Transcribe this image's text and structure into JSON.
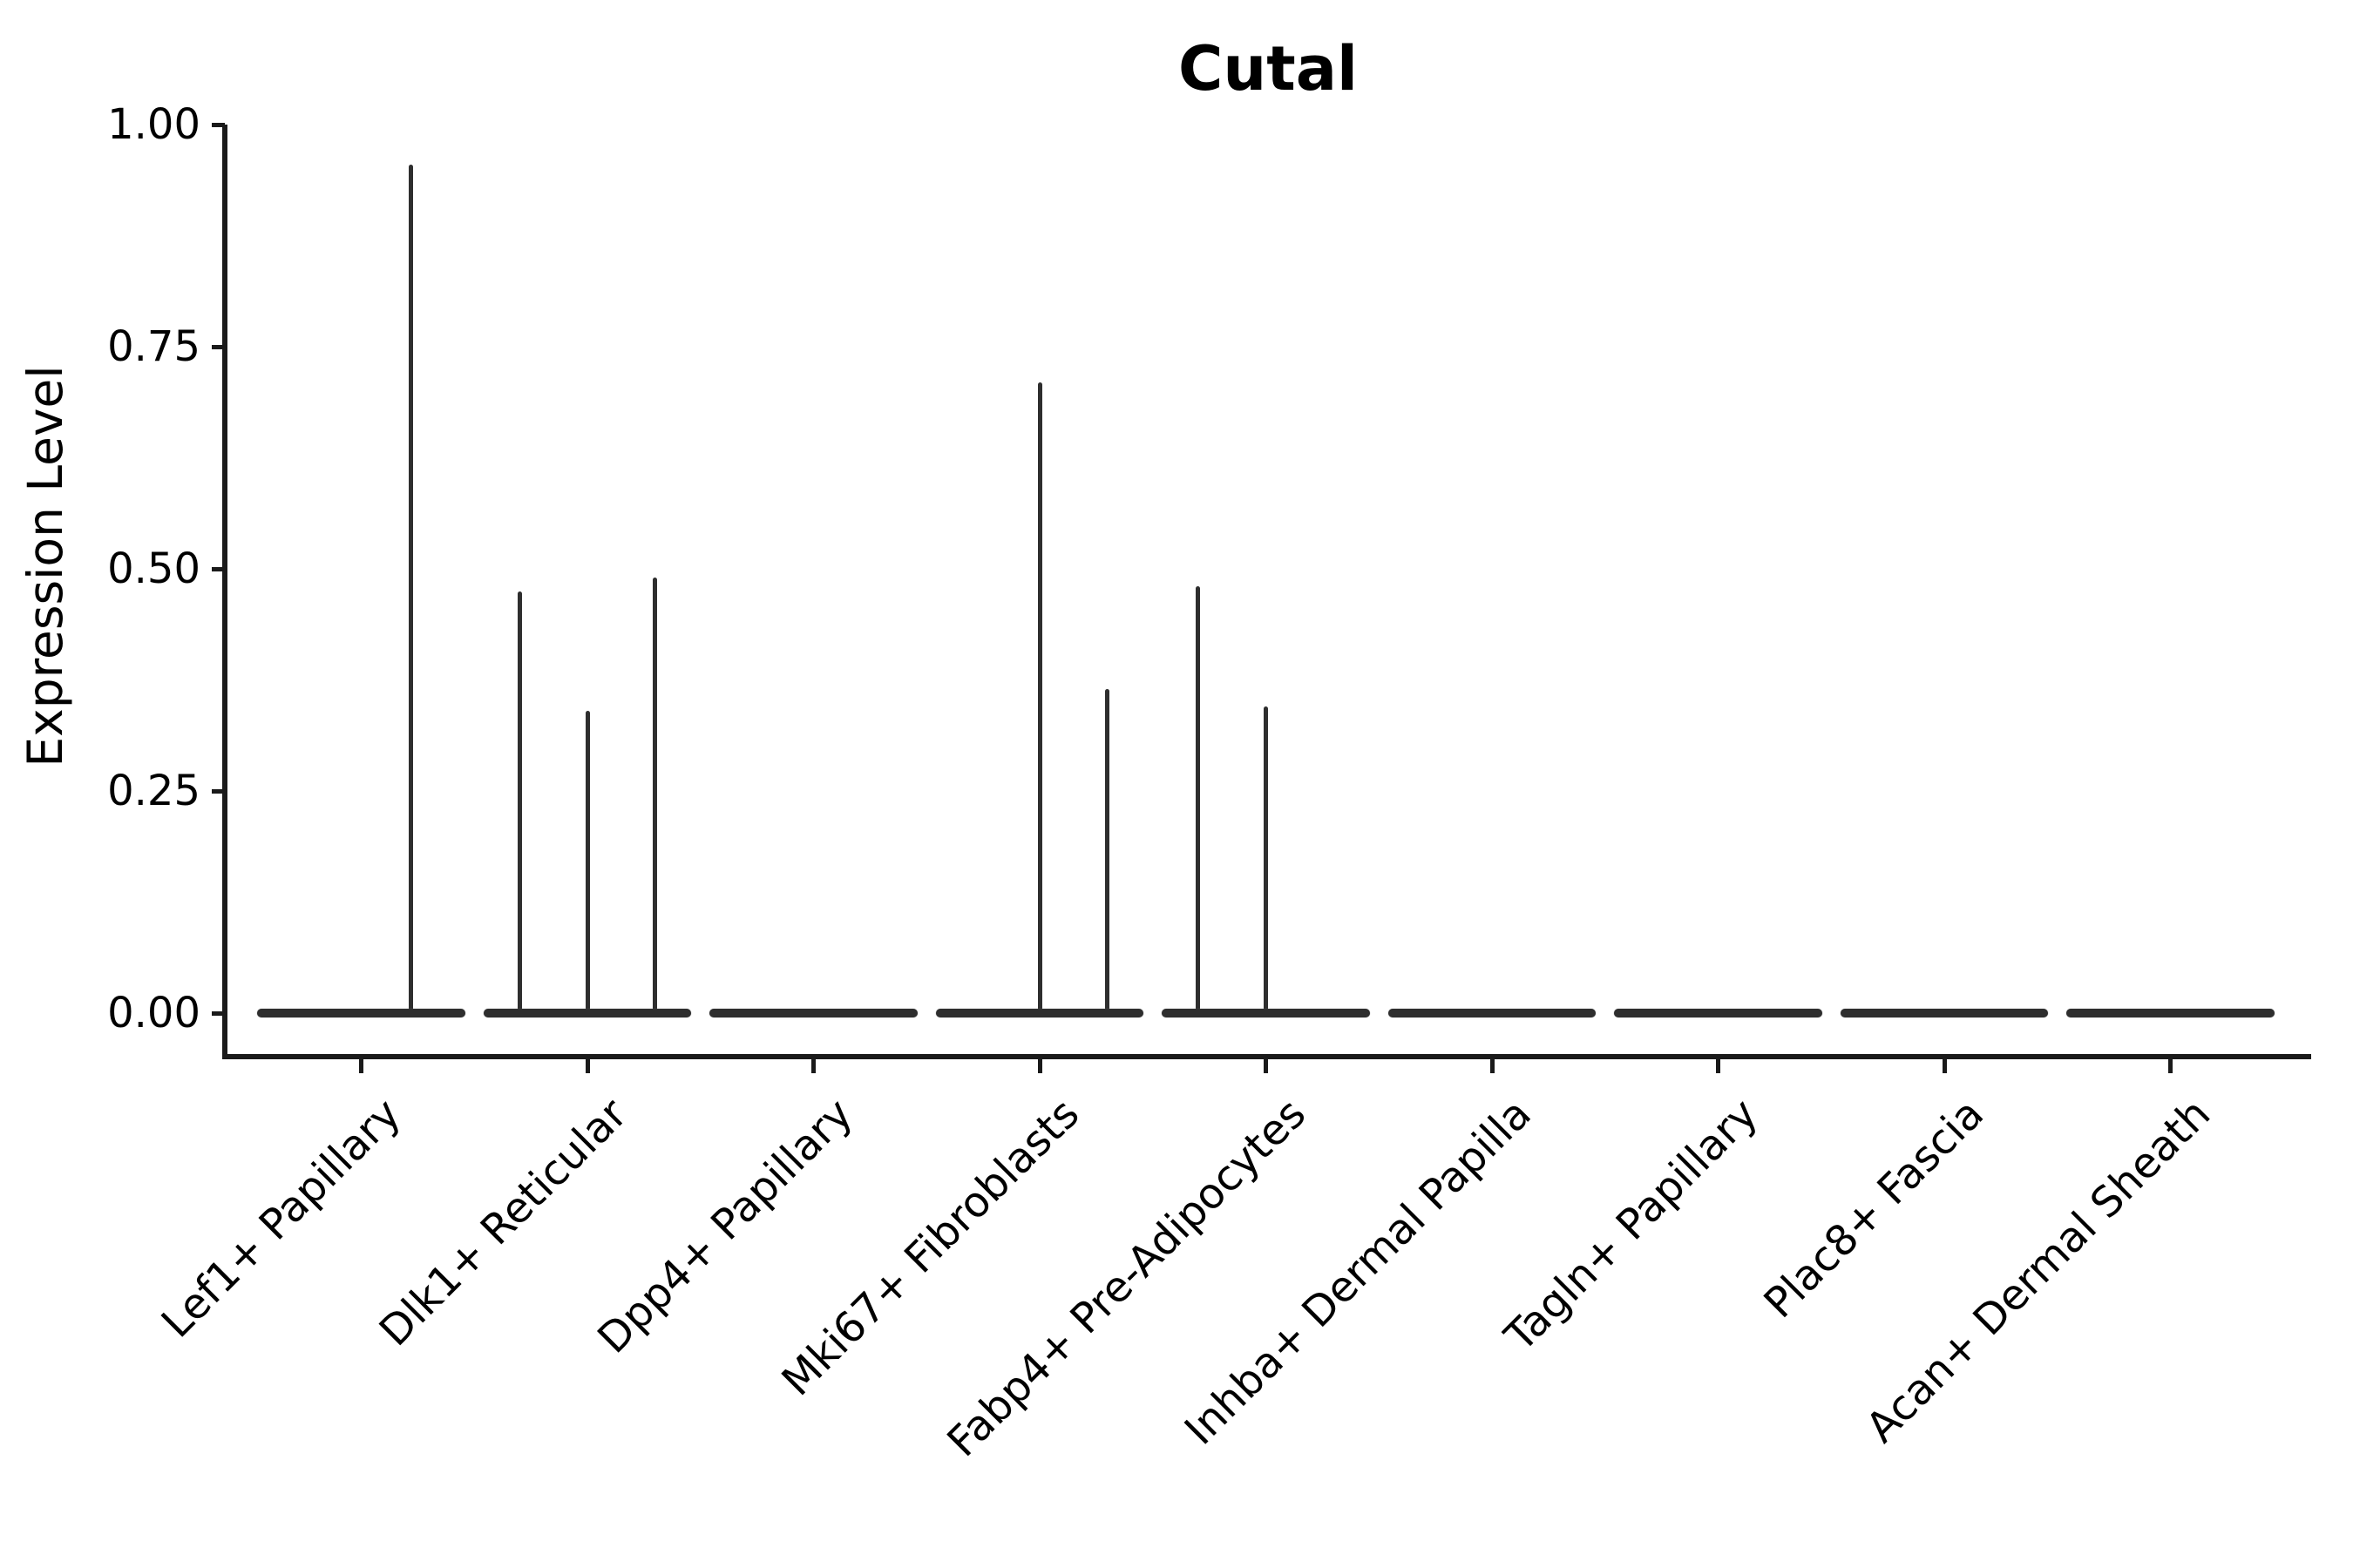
{
  "page": {
    "background_color": "#ffffff",
    "text_color": "#000000",
    "axis_color": "#1a1a1a",
    "violin_color": "#2e2e2e"
  },
  "chart_data": {
    "type": "violin",
    "title": "Cutal",
    "xlabel": "",
    "ylabel": "Expression Level",
    "ylim": [
      0,
      1
    ],
    "yticks": [
      0,
      0.25,
      0.5,
      0.75,
      1
    ],
    "ytick_labels": [
      "0.00",
      "0.25",
      "0.50",
      "0.75",
      "1.00"
    ],
    "grid": false,
    "legend": false,
    "x_label_rotation_deg": 45,
    "violin_width_frac": 0.92,
    "categories": [
      "Lef1+ Papillary",
      "Dlk1+ Reticular",
      "Dpp4+ Papillary",
      "Mki67+ Fibroblasts",
      "Fabp4+ Pre-Adipocytes",
      "Inhba+ Dermal Papilla",
      "Tagln+ Papillary",
      "Plac8+ Fascia",
      "Acan+ Dermal Sheath"
    ],
    "violins": [
      {
        "category": "Lef1+ Papillary",
        "baseline_value": 0,
        "spikes": [
          {
            "offset_frac": 0.22,
            "max_value": 0.955
          }
        ]
      },
      {
        "category": "Dlk1+ Reticular",
        "baseline_value": 0,
        "spikes": [
          {
            "offset_frac": -0.3,
            "max_value": 0.475
          },
          {
            "offset_frac": 0,
            "max_value": 0.34
          },
          {
            "offset_frac": 0.3,
            "max_value": 0.49
          }
        ]
      },
      {
        "category": "Dpp4+ Papillary",
        "baseline_value": 0,
        "spikes": []
      },
      {
        "category": "Mki67+ Fibroblasts",
        "baseline_value": 0,
        "spikes": [
          {
            "offset_frac": 0,
            "max_value": 0.71
          },
          {
            "offset_frac": 0.3,
            "max_value": 0.365
          }
        ]
      },
      {
        "category": "Fabp4+ Pre-Adipocytes",
        "baseline_value": 0,
        "spikes": [
          {
            "offset_frac": -0.3,
            "max_value": 0.48
          },
          {
            "offset_frac": 0,
            "max_value": 0.345
          }
        ]
      },
      {
        "category": "Inhba+ Dermal Papilla",
        "baseline_value": 0,
        "spikes": []
      },
      {
        "category": "Tagln+ Papillary",
        "baseline_value": 0,
        "spikes": []
      },
      {
        "category": "Plac8+ Fascia",
        "baseline_value": 0,
        "spikes": []
      },
      {
        "category": "Acan+ Dermal Sheath",
        "baseline_value": 0,
        "spikes": []
      }
    ]
  }
}
